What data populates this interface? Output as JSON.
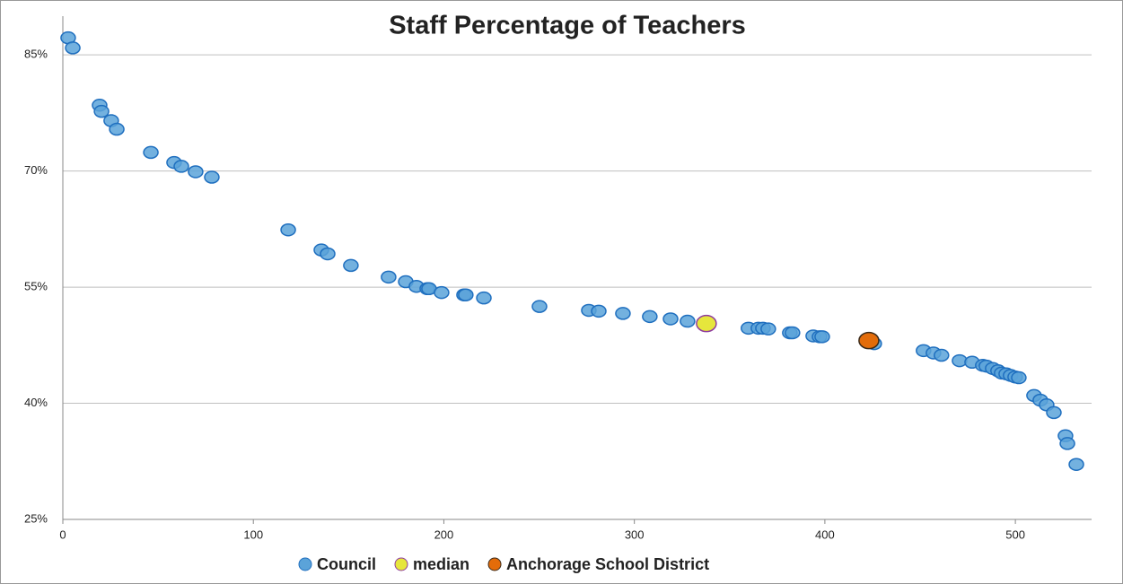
{
  "chart_data": {
    "type": "scatter",
    "title": "Staff Percentage of Teachers",
    "xlim": [
      0,
      540
    ],
    "xticks": [
      0,
      100,
      200,
      300,
      400,
      500
    ],
    "ylim": [
      25,
      90
    ],
    "yticks": [
      {
        "value": 25,
        "label": "25%"
      },
      {
        "value": 40,
        "label": "40%"
      },
      {
        "value": 55,
        "label": "55%"
      },
      {
        "value": 70,
        "label": "70%"
      },
      {
        "value": 85,
        "label": "85%"
      }
    ],
    "grid": true,
    "legend": "bottom",
    "series": [
      {
        "name": "Council",
        "color": "#5ba3d9",
        "x": [
          2.8,
          5.2,
          19.3,
          20.3,
          25.4,
          28.3,
          46.2,
          58.4,
          62.2,
          69.7,
          78.2,
          118.3,
          135.7,
          139.0,
          151.2,
          171.0,
          180.0,
          185.6,
          191.3,
          192.2,
          198.8,
          210.6,
          211.5,
          221.0,
          250.2,
          276.1,
          281.3,
          294.0,
          308.1,
          319.0,
          327.9,
          359.9,
          365.1,
          367.5,
          370.3,
          381.6,
          383.0,
          393.9,
          397.2,
          398.6,
          425.9,
          451.8,
          457.0,
          461.2,
          470.7,
          477.3,
          482.9,
          484.8,
          488.1,
          490.9,
          492.8,
          495.2,
          497.5,
          499.9,
          501.8,
          509.8,
          513.1,
          516.4,
          520.2,
          526.3,
          527.3,
          532.0
        ],
        "values": [
          87.2,
          85.9,
          78.5,
          77.7,
          76.5,
          75.4,
          72.4,
          71.1,
          70.6,
          69.9,
          69.2,
          62.4,
          59.8,
          59.3,
          57.8,
          56.3,
          55.7,
          55.1,
          54.8,
          54.8,
          54.3,
          54.0,
          54.0,
          53.6,
          52.5,
          52.0,
          51.9,
          51.6,
          51.2,
          50.9,
          50.6,
          49.7,
          49.7,
          49.7,
          49.6,
          49.1,
          49.1,
          48.7,
          48.6,
          48.6,
          47.7,
          46.8,
          46.5,
          46.2,
          45.5,
          45.3,
          44.9,
          44.8,
          44.5,
          44.2,
          43.9,
          43.8,
          43.6,
          43.4,
          43.3,
          41.0,
          40.4,
          39.8,
          38.8,
          35.8,
          34.8,
          32.1
        ]
      },
      {
        "name": "median",
        "color": "#e6e63c",
        "x": [
          337.8
        ],
        "values": [
          50.3
        ]
      },
      {
        "name": "Anchorage School District",
        "color": "#e36c0a",
        "x": [
          423.1
        ],
        "values": [
          48.1
        ]
      }
    ]
  }
}
